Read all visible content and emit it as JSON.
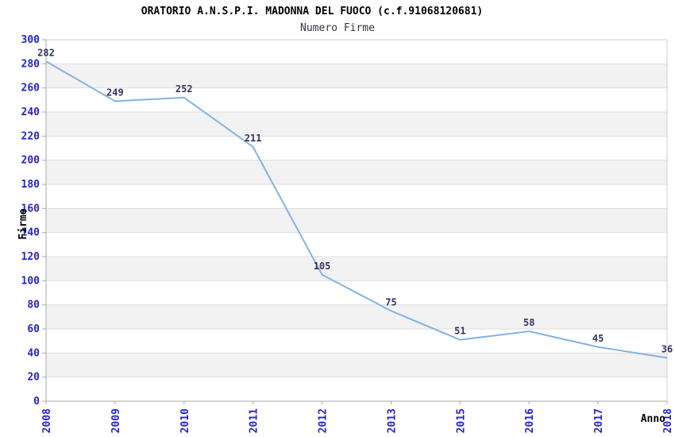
{
  "chart_data": {
    "type": "line",
    "title": "ORATORIO A.N.S.P.I. MADONNA DEL FUOCO (c.f.91068120681)",
    "subtitle": "Numero Firme",
    "xlabel": "Anno",
    "ylabel": "Firme",
    "categories": [
      "2008",
      "2009",
      "2010",
      "2011",
      "2012",
      "2013",
      "2015",
      "2016",
      "2017",
      "2018"
    ],
    "values": [
      282,
      249,
      252,
      211,
      105,
      75,
      51,
      58,
      45,
      36
    ],
    "ylim": [
      0,
      300
    ],
    "ytick_step": 20,
    "grid": "horizontal-bands",
    "legend_position": "none",
    "colors": {
      "line": "#84B2E4",
      "tick_label": "#2424CC",
      "data_label": "#333366",
      "band": "#F2F2F2",
      "background": "#FFFFFF",
      "gridline": "#DDDDDD",
      "axis": "#AAAAAA",
      "border": "#CCCCCC",
      "title": "#000000",
      "subtitle": "#333340",
      "axis_title": "#000000"
    }
  }
}
